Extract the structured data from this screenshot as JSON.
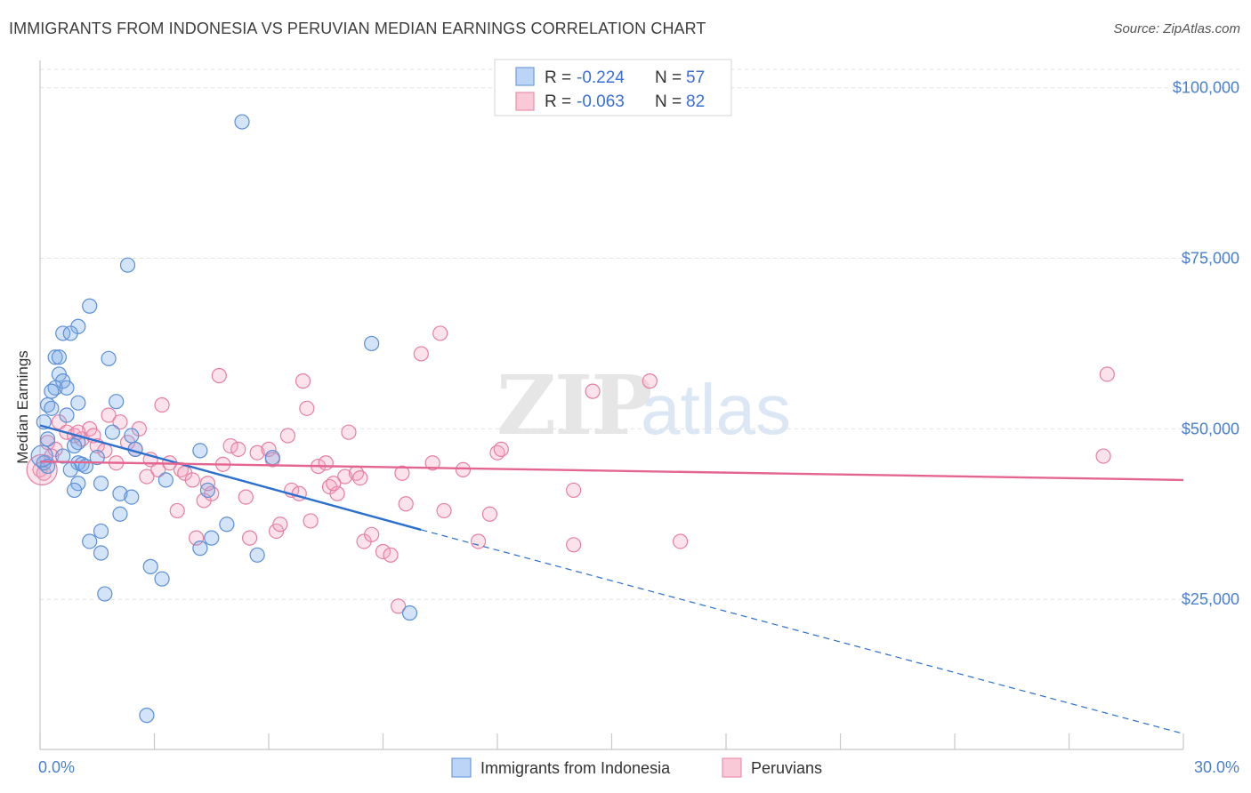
{
  "title": "IMMIGRANTS FROM INDONESIA VS PERUVIAN MEDIAN EARNINGS CORRELATION CHART",
  "source": "Source: ZipAtlas.com",
  "watermark": {
    "zip": "ZIP",
    "atlas": "atlas"
  },
  "legend_top": [
    {
      "r_label": "R =",
      "r_value": "-0.224",
      "n_label": "N =",
      "n_value": "57"
    },
    {
      "r_label": "R =",
      "r_value": "-0.063",
      "n_label": "N =",
      "n_value": "82"
    }
  ],
  "chart_data": {
    "type": "scatter",
    "title": "IMMIGRANTS FROM INDONESIA VS PERUVIAN MEDIAN EARNINGS CORRELATION CHART",
    "xlabel": "",
    "ylabel": "Median Earnings",
    "xlim": [
      0,
      30
    ],
    "ylim": [
      3000,
      104000
    ],
    "x_tick_labels": [
      "0.0%",
      "30.0%"
    ],
    "y_ticks": [
      25000,
      50000,
      75000,
      100000
    ],
    "y_tick_labels": [
      "$25,000",
      "$50,000",
      "$75,000",
      "$100,000"
    ],
    "grid": true,
    "legend_position": "bottom",
    "series": [
      {
        "name": "Immigrants from Indonesia",
        "color": "#7aaae8",
        "stroke": "#5b8fd6",
        "r": -0.224,
        "n": 57,
        "trend": {
          "x": [
            0,
            10
          ],
          "y": [
            50500,
            35200
          ],
          "dashed_to": [
            30,
            5300
          ]
        },
        "trend_color": "#2b6fcf",
        "points": [
          [
            5.3,
            95000
          ],
          [
            2.3,
            74000
          ],
          [
            1.3,
            68000
          ],
          [
            1.0,
            65000
          ],
          [
            0.6,
            64000
          ],
          [
            0.8,
            64000
          ],
          [
            0.4,
            60500
          ],
          [
            0.5,
            60500
          ],
          [
            1.8,
            60300
          ],
          [
            0.5,
            58000
          ],
          [
            0.6,
            57000
          ],
          [
            0.4,
            56000
          ],
          [
            0.7,
            56000
          ],
          [
            0.3,
            55500
          ],
          [
            2.0,
            54000
          ],
          [
            1.0,
            53800
          ],
          [
            0.2,
            53500
          ],
          [
            0.3,
            53000
          ],
          [
            0.7,
            52000
          ],
          [
            0.1,
            51000
          ],
          [
            1.9,
            49500
          ],
          [
            0.2,
            48500
          ],
          [
            1.0,
            48000
          ],
          [
            2.4,
            49000
          ],
          [
            0.9,
            47500
          ],
          [
            2.5,
            47000
          ],
          [
            4.2,
            46800
          ],
          [
            0.6,
            46000
          ],
          [
            1.5,
            45800
          ],
          [
            6.1,
            45800
          ],
          [
            1.0,
            45000
          ],
          [
            1.1,
            44800
          ],
          [
            1.2,
            44500
          ],
          [
            0.8,
            44000
          ],
          [
            1.0,
            42000
          ],
          [
            3.3,
            42500
          ],
          [
            0.9,
            41000
          ],
          [
            1.6,
            42000
          ],
          [
            4.4,
            41000
          ],
          [
            2.1,
            40500
          ],
          [
            2.4,
            40000
          ],
          [
            2.1,
            37500
          ],
          [
            4.9,
            36000
          ],
          [
            1.6,
            35000
          ],
          [
            1.3,
            33500
          ],
          [
            4.5,
            34000
          ],
          [
            4.2,
            32500
          ],
          [
            1.6,
            31800
          ],
          [
            5.7,
            31500
          ],
          [
            2.9,
            29800
          ],
          [
            3.2,
            28000
          ],
          [
            8.7,
            62500
          ],
          [
            1.7,
            25800
          ],
          [
            9.7,
            23000
          ],
          [
            2.8,
            8000
          ],
          [
            0.1,
            45000
          ],
          [
            0.2,
            44500
          ]
        ]
      },
      {
        "name": "Peruvians",
        "color": "#f5a6c0",
        "stroke": "#e67fa2",
        "r": -0.063,
        "n": 82,
        "trend": {
          "x": [
            0,
            30
          ],
          "y": [
            45200,
            42500
          ]
        },
        "trend_color": "#e4668f",
        "points": [
          [
            0.0,
            44000
          ],
          [
            0.2,
            48000
          ],
          [
            0.4,
            47000
          ],
          [
            0.5,
            51000
          ],
          [
            0.7,
            49500
          ],
          [
            0.9,
            49000
          ],
          [
            1.1,
            48500
          ],
          [
            1.3,
            50000
          ],
          [
            1.4,
            49000
          ],
          [
            1.5,
            47500
          ],
          [
            1.7,
            46800
          ],
          [
            1.8,
            52000
          ],
          [
            2.0,
            45000
          ],
          [
            2.1,
            51000
          ],
          [
            2.3,
            48000
          ],
          [
            2.5,
            47000
          ],
          [
            2.6,
            50000
          ],
          [
            2.9,
            45500
          ],
          [
            3.1,
            44000
          ],
          [
            3.2,
            53500
          ],
          [
            3.4,
            45000
          ],
          [
            3.6,
            38000
          ],
          [
            3.7,
            44000
          ],
          [
            3.8,
            43500
          ],
          [
            4.0,
            42500
          ],
          [
            4.1,
            34000
          ],
          [
            4.3,
            39500
          ],
          [
            4.5,
            40500
          ],
          [
            4.7,
            57800
          ],
          [
            4.8,
            44800
          ],
          [
            5.0,
            47500
          ],
          [
            5.2,
            47000
          ],
          [
            5.4,
            40000
          ],
          [
            5.5,
            34000
          ],
          [
            5.7,
            46500
          ],
          [
            6.0,
            47000
          ],
          [
            6.2,
            35000
          ],
          [
            6.3,
            36000
          ],
          [
            6.5,
            49000
          ],
          [
            6.6,
            41000
          ],
          [
            6.8,
            40500
          ],
          [
            6.9,
            57000
          ],
          [
            7.0,
            53000
          ],
          [
            7.1,
            36500
          ],
          [
            7.3,
            44500
          ],
          [
            7.5,
            45000
          ],
          [
            7.6,
            41500
          ],
          [
            7.8,
            40500
          ],
          [
            8.0,
            43000
          ],
          [
            8.1,
            49500
          ],
          [
            8.3,
            43500
          ],
          [
            8.4,
            42800
          ],
          [
            8.5,
            33500
          ],
          [
            8.7,
            34500
          ],
          [
            9.0,
            32000
          ],
          [
            9.2,
            31500
          ],
          [
            9.4,
            24000
          ],
          [
            9.5,
            43500
          ],
          [
            9.6,
            39000
          ],
          [
            10.0,
            61000
          ],
          [
            10.3,
            45000
          ],
          [
            10.5,
            64000
          ],
          [
            10.6,
            38000
          ],
          [
            11.1,
            44000
          ],
          [
            11.5,
            33500
          ],
          [
            11.8,
            37500
          ],
          [
            12.0,
            46500
          ],
          [
            12.1,
            47000
          ],
          [
            14.0,
            41000
          ],
          [
            14.0,
            33000
          ],
          [
            14.5,
            55500
          ],
          [
            16.0,
            57000
          ],
          [
            16.8,
            33500
          ],
          [
            28.0,
            58000
          ],
          [
            27.9,
            46000
          ],
          [
            0.1,
            43500
          ],
          [
            0.3,
            46000
          ],
          [
            1.0,
            49500
          ],
          [
            2.8,
            43000
          ],
          [
            4.4,
            42000
          ],
          [
            6.1,
            45500
          ],
          [
            7.7,
            42000
          ]
        ]
      }
    ]
  },
  "legend_bottom": [
    {
      "label": "Immigrants from Indonesia",
      "color": "#bcd4f5",
      "stroke": "#6f9be0"
    },
    {
      "label": "Peruvians",
      "color": "#f9c9d8",
      "stroke": "#eb91ae"
    }
  ]
}
